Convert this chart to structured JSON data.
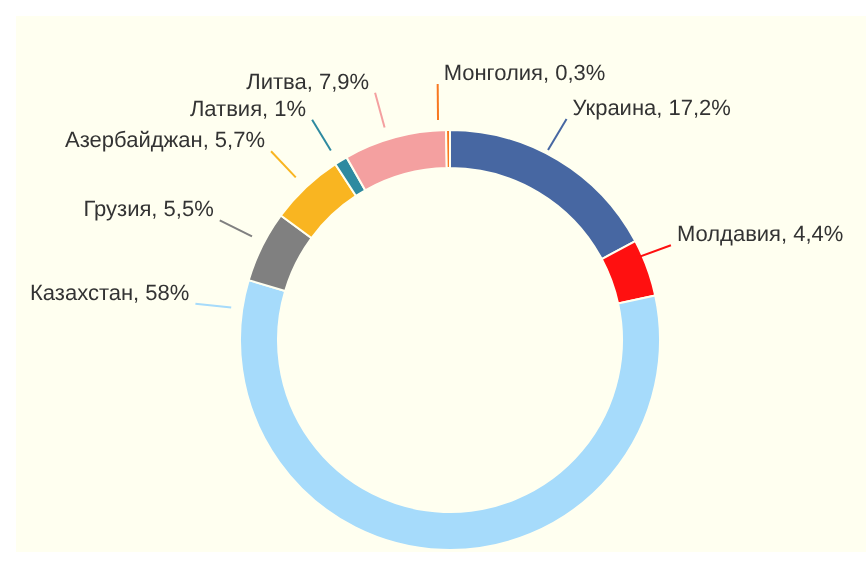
{
  "chart_data": {
    "type": "donut",
    "categories": [
      "Украина",
      "Молдавия",
      "Казахстан",
      "Грузия",
      "Азербайджан",
      "Латвия",
      "Литва",
      "Монголия"
    ],
    "values": [
      17.2,
      4.4,
      58,
      5.5,
      5.7,
      1,
      7.9,
      0.3
    ],
    "value_labels": [
      "17,2%",
      "4,4%",
      "58%",
      "5,5%",
      "5,7%",
      "1%",
      "7,9%",
      "0,3%"
    ],
    "colors": [
      "#4767a2",
      "#ff1010",
      "#a6dbfb",
      "#808080",
      "#f9b521",
      "#2e8aa0",
      "#f4a0a0",
      "#f87820"
    ],
    "legend": false
  }
}
